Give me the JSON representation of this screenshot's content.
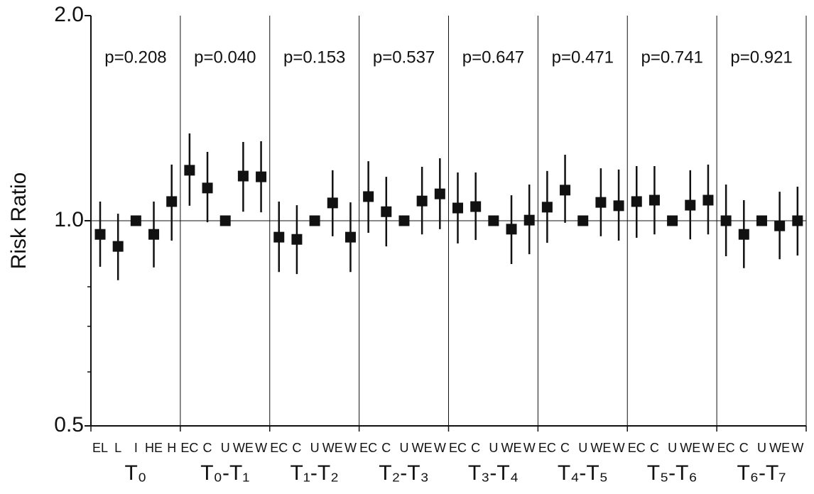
{
  "chart_data": {
    "type": "forest",
    "y_label": "Risk Ratio",
    "log_scale": true,
    "ylim": [
      0.5,
      2.0
    ],
    "yticks": [
      0.5,
      {
        "value": 1,
        "label": "1.0"
      },
      {
        "value": 2,
        "label": "2.0"
      }
    ],
    "minor_yticks": [
      0.6,
      0.7,
      0.8
    ],
    "reference_line": 1,
    "color": "#111111",
    "groups": [
      {
        "label": "T₀",
        "annotation": "p=0.208"
      },
      {
        "label": "T₀-T₁",
        "annotation": "p=0.040"
      },
      {
        "label": "T₁-T₂",
        "annotation": "p=0.153"
      },
      {
        "label": "T₂-T₃",
        "annotation": "p=0.537"
      },
      {
        "label": "T₃-T₄",
        "annotation": "p=0.647"
      },
      {
        "label": "T₄-T₅",
        "annotation": "p=0.471"
      },
      {
        "label": "T₅-T₆",
        "annotation": "p=0.741"
      },
      {
        "label": "T₆-T₇",
        "annotation": "p=0.921"
      }
    ],
    "categories": [
      "EL",
      "L",
      "I",
      "HE",
      "H",
      "EC",
      "C",
      "U",
      "WE",
      "W",
      "EC",
      "C",
      "U",
      "WE",
      "W",
      "EC",
      "C",
      "U",
      "WE",
      "W",
      "EC",
      "C",
      "U",
      "WE",
      "W",
      "EC",
      "C",
      "U",
      "WE",
      "W",
      "EC",
      "C",
      "U",
      "WE",
      "W",
      "EC",
      "C",
      "U",
      "WE",
      "W"
    ],
    "series": [
      {
        "values": [
          0.955,
          0.917,
          1,
          0.955,
          1.067,
          1.186,
          1.117,
          1,
          1.163,
          1.16,
          0.946,
          0.939,
          1,
          1.062,
          0.946,
          1.085,
          1.031,
          1,
          1.069,
          1.095,
          1.044,
          1.049,
          1,
          0.972,
          1.002,
          1.047,
          1.109,
          1,
          1.064,
          1.052,
          1.067,
          1.072,
          1,
          1.054,
          1.072,
          1,
          0.955,
          1,
          0.983,
          1
        ],
        "lower": [
          0.856,
          0.818,
          null,
          0.854,
          0.935,
          1.052,
          0.995,
          null,
          1.031,
          1.029,
          0.841,
          0.835,
          null,
          0.949,
          0.841,
          0.96,
          0.917,
          null,
          0.955,
          0.972,
          0.926,
          0.937,
          null,
          0.864,
          0.893,
          0.928,
          0.993,
          null,
          0.949,
          0.935,
          0.944,
          0.955,
          null,
          0.939,
          0.955,
          0.887,
          0.852,
          null,
          0.878,
          0.889
        ],
        "upper": [
          1.067,
          1.024,
          null,
          1.067,
          1.209,
          1.343,
          1.262,
          null,
          1.305,
          1.308,
          1.067,
          1.054,
          null,
          1.186,
          1.064,
          1.223,
          1.16,
          null,
          1.2,
          1.235,
          1.177,
          1.177,
          null,
          1.09,
          1.13,
          1.183,
          1.25,
          null,
          1.194,
          1.189,
          1.203,
          1.203,
          null,
          1.186,
          1.209,
          1.13,
          1.072,
          null,
          1.103,
          1.122
        ]
      }
    ]
  }
}
